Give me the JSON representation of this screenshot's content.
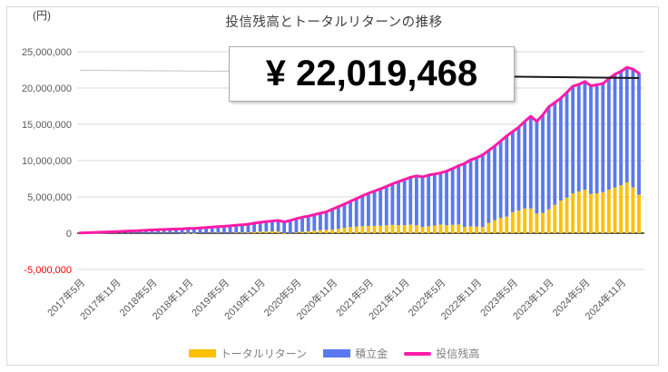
{
  "title": "投信残高とトータルリターンの推移",
  "y_axis_unit": "(円)",
  "callout": {
    "text": "¥ 22,019,468",
    "value": 22019468
  },
  "y_axis": {
    "ticks": [
      {
        "label": "25,000,000",
        "value": 25000000,
        "color": "#595959"
      },
      {
        "label": "20,000,000",
        "value": 20000000,
        "color": "#595959"
      },
      {
        "label": "15,000,000",
        "value": 15000000,
        "color": "#595959"
      },
      {
        "label": "10,000,000",
        "value": 10000000,
        "color": "#595959"
      },
      {
        "label": "5,000,000",
        "value": 5000000,
        "color": "#595959"
      },
      {
        "label": "0",
        "value": 0,
        "color": "#595959"
      },
      {
        "label": "-5,000,000",
        "value": -5000000,
        "color": "#FF0000"
      }
    ]
  },
  "x_axis": {
    "tick_month_indices": [
      0,
      6,
      12,
      18,
      24,
      30,
      36,
      42,
      48,
      54,
      60,
      66,
      72,
      78,
      84,
      90
    ],
    "tick_labels": [
      "2017年5月",
      "2017年11月",
      "2018年5月",
      "2018年11月",
      "2019年5月",
      "2019年11月",
      "2020年5月",
      "2020年11月",
      "2021年5月",
      "2021年11月",
      "2022年5月",
      "2022年11月",
      "2023年5月",
      "2023年11月",
      "2024年5月",
      "2024年11月"
    ]
  },
  "legend": {
    "items": [
      {
        "label": "トータルリターン",
        "color": "#FFC000",
        "marker": "bar"
      },
      {
        "label": "積立金",
        "color": "#5B78EE",
        "marker": "bar"
      },
      {
        "label": "投信残高",
        "color": "#FF1CA8",
        "marker": "line"
      }
    ]
  },
  "chart_data": {
    "type": "bar",
    "subtype": "stacked-bars-with-line-overlay",
    "title": "投信残高とトータルリターンの推移",
    "ylabel": "(円)",
    "ylim": [
      -5000000,
      25000000
    ],
    "grid": true,
    "legend_position": "bottom",
    "categories": [
      "2017年5月",
      "2017年6月",
      "2017年7月",
      "2017年8月",
      "2017年9月",
      "2017年10月",
      "2017年11月",
      "2017年12月",
      "2018年1月",
      "2018年2月",
      "2018年3月",
      "2018年4月",
      "2018年5月",
      "2018年6月",
      "2018年7月",
      "2018年8月",
      "2018年9月",
      "2018年10月",
      "2018年11月",
      "2018年12月",
      "2019年1月",
      "2019年2月",
      "2019年3月",
      "2019年4月",
      "2019年5月",
      "2019年6月",
      "2019年7月",
      "2019年8月",
      "2019年9月",
      "2019年10月",
      "2019年11月",
      "2019年12月",
      "2020年1月",
      "2020年2月",
      "2020年3月",
      "2020年4月",
      "2020年5月",
      "2020年6月",
      "2020年7月",
      "2020年8月",
      "2020年9月",
      "2020年10月",
      "2020年11月",
      "2020年12月",
      "2021年1月",
      "2021年2月",
      "2021年3月",
      "2021年4月",
      "2021年5月",
      "2021年6月",
      "2021年7月",
      "2021年8月",
      "2021年9月",
      "2021年10月",
      "2021年11月",
      "2021年12月",
      "2022年1月",
      "2022年2月",
      "2022年3月",
      "2022年4月",
      "2022年5月",
      "2022年6月",
      "2022年7月",
      "2022年8月",
      "2022年9月",
      "2022年10月",
      "2022年11月",
      "2022年12月",
      "2023年1月",
      "2023年2月",
      "2023年3月",
      "2023年4月",
      "2023年5月",
      "2023年6月",
      "2023年7月",
      "2023年8月",
      "2023年9月",
      "2023年10月",
      "2023年11月",
      "2023年12月",
      "2024年1月",
      "2024年2月",
      "2024年3月",
      "2024年4月",
      "2024年5月",
      "2024年6月",
      "2024年7月",
      "2024年8月",
      "2024年9月",
      "2024年10月",
      "2024年11月",
      "2024年12月",
      "2025年1月",
      "2025年2月"
    ],
    "series": [
      {
        "name": "トータルリターン",
        "type": "bar-stacked",
        "color": "#FFC000",
        "values": [
          0,
          0,
          10000,
          10000,
          10000,
          20000,
          20000,
          20000,
          20000,
          10000,
          20000,
          30000,
          20000,
          20000,
          30000,
          20000,
          10000,
          -20000,
          -50000,
          -80000,
          0,
          30000,
          50000,
          60000,
          20000,
          40000,
          80000,
          80000,
          100000,
          160000,
          200000,
          240000,
          250000,
          240000,
          -150000,
          -20000,
          100000,
          200000,
          260000,
          350000,
          420000,
          460000,
          500000,
          600000,
          720000,
          850000,
          900000,
          970000,
          1000000,
          1020000,
          1050000,
          1100000,
          1150000,
          1120000,
          1100000,
          1200000,
          1100000,
          850000,
          950000,
          1050000,
          1200000,
          1100000,
          1150000,
          1200000,
          850000,
          950000,
          900000,
          850000,
          1400000,
          1800000,
          2100000,
          2300000,
          2900000,
          3100000,
          3400000,
          3400000,
          2700000,
          2800000,
          3300000,
          3900000,
          4500000,
          4900000,
          5500000,
          5750000,
          6000000,
          5400000,
          5500000,
          5650000,
          6000000,
          6300000,
          6600000,
          7000000,
          6300000,
          5300000
        ]
      },
      {
        "name": "積立金",
        "type": "bar-stacked",
        "color": "#5B78EE",
        "values": [
          30000,
          60000,
          80000,
          110000,
          140000,
          160000,
          190000,
          230000,
          270000,
          310000,
          340000,
          380000,
          430000,
          460000,
          490000,
          530000,
          570000,
          620000,
          700000,
          740000,
          720000,
          750000,
          790000,
          840000,
          930000,
          980000,
          1020000,
          1080000,
          1140000,
          1210000,
          1300000,
          1360000,
          1430000,
          1510000,
          1700000,
          1770000,
          1900000,
          2000000,
          2090000,
          2200000,
          2330000,
          2490000,
          2800000,
          3050000,
          3280000,
          3550000,
          3850000,
          4180000,
          4500000,
          4780000,
          5050000,
          5350000,
          5650000,
          5980000,
          6300000,
          6500000,
          6800000,
          6900000,
          7050000,
          7100000,
          7100000,
          7450000,
          7750000,
          8100000,
          8750000,
          9150000,
          9500000,
          9950000,
          10000000,
          10200000,
          10600000,
          11100000,
          11100000,
          11500000,
          12000000,
          12700000,
          12700000,
          13500000,
          14100000,
          14100000,
          14100000,
          14500000,
          14750000,
          14750000,
          14900000,
          14900000,
          14950000,
          14950000,
          15300000,
          15600000,
          15700000,
          15850000,
          16300000,
          16719468
        ]
      },
      {
        "name": "投信残高",
        "type": "line",
        "color": "#FF1CA8",
        "values": [
          30000,
          60000,
          90000,
          120000,
          150000,
          180000,
          210000,
          250000,
          290000,
          320000,
          360000,
          410000,
          450000,
          480000,
          520000,
          550000,
          580000,
          600000,
          650000,
          660000,
          720000,
          780000,
          840000,
          900000,
          950000,
          1020000,
          1100000,
          1160000,
          1240000,
          1370000,
          1500000,
          1600000,
          1680000,
          1750000,
          1550000,
          1750000,
          2000000,
          2200000,
          2350000,
          2550000,
          2750000,
          2950000,
          3300000,
          3650000,
          4000000,
          4400000,
          4750000,
          5150000,
          5500000,
          5800000,
          6100000,
          6450000,
          6800000,
          7100000,
          7400000,
          7700000,
          7900000,
          7750000,
          8000000,
          8150000,
          8300000,
          8550000,
          8900000,
          9300000,
          9600000,
          10100000,
          10400000,
          10800000,
          11400000,
          12000000,
          12700000,
          13400000,
          14000000,
          14600000,
          15400000,
          16100000,
          15400000,
          16300000,
          17400000,
          18000000,
          18600000,
          19400000,
          20250000,
          20500000,
          20900000,
          20300000,
          20450000,
          20600000,
          21300000,
          21900000,
          22300000,
          22850000,
          22600000,
          22019468
        ]
      }
    ]
  }
}
